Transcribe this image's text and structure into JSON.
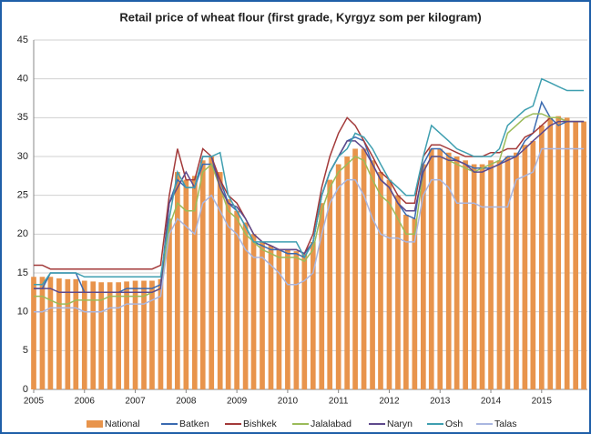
{
  "chart_data": {
    "type": "combo",
    "title": "Retail price of wheat flour (first grade, Kyrgyz som per kilogram)",
    "x": [
      2005,
      2005.17,
      2005.33,
      2005.5,
      2005.67,
      2005.83,
      2006,
      2006.17,
      2006.33,
      2006.5,
      2006.67,
      2006.83,
      2007,
      2007.17,
      2007.33,
      2007.5,
      2007.67,
      2007.83,
      2008,
      2008.17,
      2008.33,
      2008.5,
      2008.67,
      2008.83,
      2009,
      2009.17,
      2009.33,
      2009.5,
      2009.67,
      2009.83,
      2010,
      2010.17,
      2010.33,
      2010.5,
      2010.67,
      2010.83,
      2011,
      2011.17,
      2011.33,
      2011.5,
      2011.67,
      2011.83,
      2012,
      2012.17,
      2012.33,
      2012.5,
      2012.67,
      2012.83,
      2013,
      2013.17,
      2013.33,
      2013.5,
      2013.67,
      2013.83,
      2014,
      2014.17,
      2014.33,
      2014.5,
      2014.67,
      2014.83,
      2015,
      2015.17,
      2015.33,
      2015.5,
      2015.67,
      2015.83
    ],
    "xlim": [
      2005,
      2015.9
    ],
    "xticks": [
      2005,
      2006,
      2007,
      2008,
      2009,
      2010,
      2011,
      2012,
      2013,
      2014,
      2015
    ],
    "ylim": [
      0,
      45
    ],
    "yticks": [
      0,
      5,
      10,
      15,
      20,
      25,
      30,
      35,
      40,
      45
    ],
    "grid": true,
    "legend": "bottom",
    "series": [
      {
        "name": "National",
        "type": "bar",
        "color": "#e8944c",
        "values": [
          14.5,
          14.5,
          14.5,
          14.3,
          14.2,
          14.2,
          14,
          13.9,
          13.8,
          13.8,
          13.8,
          13.9,
          14,
          14,
          14,
          14.2,
          22,
          28,
          27,
          27.5,
          29.5,
          30,
          28,
          24.5,
          23,
          21.5,
          20,
          19,
          18.5,
          18,
          18,
          17.8,
          17.5,
          19,
          24,
          27,
          29,
          30,
          31,
          31,
          29.5,
          28,
          27,
          25,
          22.5,
          22,
          29,
          31,
          31,
          30.5,
          30,
          29.5,
          29,
          29,
          29.5,
          29.5,
          30,
          30.5,
          31.5,
          32,
          34,
          35,
          35.2,
          35,
          34.5,
          34.5
        ]
      },
      {
        "name": "Batken",
        "type": "line",
        "color": "#3a6ab0",
        "values": [
          13,
          13,
          15,
          15,
          15,
          15,
          12.5,
          12.5,
          12.5,
          12.5,
          12.5,
          13,
          13,
          13,
          13,
          13.5,
          24,
          27,
          26,
          26,
          29,
          29,
          27,
          24,
          23,
          21,
          19,
          18.5,
          18,
          18,
          17.5,
          17.5,
          17,
          19,
          25,
          28,
          30,
          32,
          32.5,
          32,
          29,
          27,
          26,
          24,
          22.5,
          22,
          29,
          31,
          31,
          30,
          29.5,
          29,
          28.5,
          28.5,
          28.5,
          29,
          30,
          30,
          32,
          33,
          37,
          35,
          34,
          34.5,
          34.5,
          34.5
        ]
      },
      {
        "name": "Bishkek",
        "type": "line",
        "color": "#a33a3a",
        "values": [
          16,
          16,
          15.5,
          15.5,
          15.5,
          15.5,
          15.5,
          15.5,
          15.5,
          15.5,
          15.5,
          15.5,
          15.5,
          15.5,
          15.5,
          16,
          25,
          31,
          27,
          27,
          31,
          30,
          27,
          25,
          24,
          22,
          20,
          19,
          18.5,
          18,
          18,
          18,
          17.5,
          20,
          26,
          30,
          33,
          35,
          34,
          32,
          30,
          28,
          27,
          25,
          24,
          24,
          30,
          31.5,
          31.5,
          31,
          30.5,
          30,
          30,
          30,
          30.5,
          30.5,
          31,
          31,
          32.5,
          33,
          34,
          35,
          35,
          34.5,
          34.5,
          34.5
        ]
      },
      {
        "name": "Jalalabad",
        "type": "line",
        "color": "#9bbb59",
        "values": [
          12,
          12,
          11.5,
          11,
          11,
          11.5,
          11.5,
          11.5,
          11.5,
          12,
          12,
          12,
          12,
          12,
          12.5,
          13,
          21,
          24,
          23,
          23,
          28,
          29,
          26,
          23,
          22,
          20,
          19,
          18,
          17.5,
          17,
          17,
          17,
          16.5,
          18,
          23,
          26,
          28,
          29,
          30,
          29.5,
          27,
          25,
          24,
          22,
          20,
          20,
          28,
          30,
          30,
          29.5,
          29,
          28.5,
          28,
          28.5,
          29,
          29.5,
          33,
          34,
          35,
          35.5,
          35.5,
          35,
          35,
          34.5,
          34.5,
          34.5
        ]
      },
      {
        "name": "Naryn",
        "type": "line",
        "color": "#5e4a8c",
        "values": [
          13,
          13,
          13,
          12.5,
          12.5,
          12.5,
          12.5,
          12.5,
          12.5,
          12.5,
          12.5,
          12.5,
          12.5,
          12.5,
          12.5,
          13,
          24,
          26,
          28,
          26,
          30,
          30,
          26,
          24,
          23.5,
          22,
          20,
          19,
          18.5,
          18,
          18,
          18,
          17.5,
          19,
          25,
          28,
          30,
          32,
          32,
          31,
          29,
          27,
          26,
          24,
          23,
          23,
          28,
          30,
          30,
          29.5,
          29.5,
          29,
          28,
          28,
          28.5,
          29,
          29.5,
          30,
          31,
          32,
          33,
          34,
          34.5,
          34.5,
          34.5,
          34.5
        ]
      },
      {
        "name": "Osh",
        "type": "line",
        "color": "#3f9fb0",
        "values": [
          13.5,
          13.5,
          15,
          15,
          15,
          15,
          14.5,
          14.5,
          14.5,
          14.5,
          14.5,
          14.5,
          14.5,
          14.5,
          14.5,
          14.5,
          22,
          28,
          26,
          26,
          30,
          30,
          30.5,
          25,
          23,
          21,
          19,
          19,
          19,
          19,
          19,
          19,
          17,
          19,
          25,
          28,
          30,
          31,
          33,
          32.5,
          31,
          29,
          27,
          26,
          25,
          25,
          30,
          34,
          33,
          32,
          31,
          30.5,
          30,
          30,
          30,
          31,
          34,
          35,
          36,
          36.5,
          40,
          39.5,
          39,
          38.5,
          38.5,
          38.5
        ]
      },
      {
        "name": "Talas",
        "type": "line",
        "color": "#a9b6e0",
        "values": [
          10,
          10,
          10.5,
          10.5,
          10.5,
          10.5,
          10,
          10,
          10,
          10.5,
          10.5,
          11,
          11,
          11,
          11.5,
          12,
          20,
          22,
          21,
          20,
          24,
          25,
          23,
          21,
          20,
          18,
          17,
          17,
          16,
          15,
          13.5,
          13.5,
          14,
          15,
          20,
          24,
          26,
          27,
          27,
          25,
          22,
          20,
          19.5,
          19.5,
          19,
          19,
          25,
          27,
          27,
          26,
          24,
          24,
          24,
          23.5,
          23.5,
          23.5,
          23.5,
          27,
          27.5,
          28,
          31,
          31,
          31,
          31,
          31,
          31
        ]
      }
    ]
  }
}
